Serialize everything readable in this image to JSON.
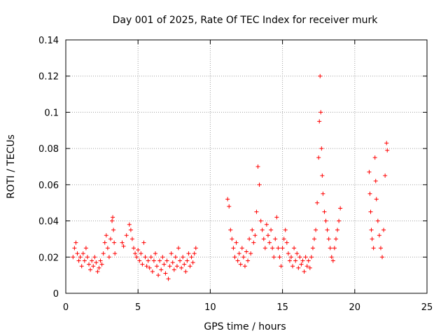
{
  "chart_data": {
    "type": "scatter",
    "title": "Day 001 of 2025, Rate Of TEC Index for receiver murk",
    "xlabel": "GPS time / hours",
    "ylabel": "ROTI / TECUs",
    "xlim": [
      0,
      25
    ],
    "ylim": [
      0,
      0.14
    ],
    "x_ticks": [
      "0",
      "5",
      "10",
      "15",
      "20",
      "25"
    ],
    "y_ticks": [
      "0",
      "0.02",
      "0.04",
      "0.06",
      "0.08",
      "0.1",
      "0.12",
      "0.14"
    ],
    "x_tick_values": [
      0,
      5,
      10,
      15,
      20,
      25
    ],
    "y_tick_values": [
      0,
      0.02,
      0.04,
      0.06,
      0.08,
      0.1,
      0.12,
      0.14
    ],
    "grid": true,
    "marker": "+",
    "marker_color": "#ff0000",
    "series": [
      {
        "points": [
          [
            0.5,
            0.02
          ],
          [
            0.6,
            0.025
          ],
          [
            0.7,
            0.028
          ],
          [
            0.8,
            0.022
          ],
          [
            0.9,
            0.018
          ],
          [
            1.0,
            0.02
          ],
          [
            1.1,
            0.015
          ],
          [
            1.2,
            0.022
          ],
          [
            1.3,
            0.018
          ],
          [
            1.4,
            0.025
          ],
          [
            1.5,
            0.02
          ],
          [
            1.6,
            0.016
          ],
          [
            1.7,
            0.013
          ],
          [
            1.8,
            0.018
          ],
          [
            1.9,
            0.015
          ],
          [
            2.0,
            0.02
          ],
          [
            2.1,
            0.017
          ],
          [
            2.2,
            0.012
          ],
          [
            2.3,
            0.014
          ],
          [
            2.4,
            0.018
          ],
          [
            2.5,
            0.016
          ],
          [
            2.6,
            0.022
          ],
          [
            2.7,
            0.028
          ],
          [
            2.8,
            0.032
          ],
          [
            2.9,
            0.025
          ],
          [
            3.0,
            0.02
          ],
          [
            3.1,
            0.03
          ],
          [
            3.2,
            0.04
          ],
          [
            3.25,
            0.042
          ],
          [
            3.3,
            0.035
          ],
          [
            3.35,
            0.028
          ],
          [
            3.4,
            0.022
          ],
          [
            3.9,
            0.028
          ],
          [
            4.0,
            0.026
          ],
          [
            4.2,
            0.032
          ],
          [
            4.4,
            0.038
          ],
          [
            4.5,
            0.035
          ],
          [
            4.6,
            0.03
          ],
          [
            4.7,
            0.025
          ],
          [
            4.8,
            0.022
          ],
          [
            4.9,
            0.02
          ],
          [
            5.0,
            0.024
          ],
          [
            5.1,
            0.018
          ],
          [
            5.2,
            0.022
          ],
          [
            5.3,
            0.016
          ],
          [
            5.4,
            0.028
          ],
          [
            5.5,
            0.02
          ],
          [
            5.6,
            0.015
          ],
          [
            5.7,
            0.018
          ],
          [
            5.8,
            0.014
          ],
          [
            5.9,
            0.02
          ],
          [
            6.0,
            0.012
          ],
          [
            6.1,
            0.018
          ],
          [
            6.2,
            0.022
          ],
          [
            6.3,
            0.015
          ],
          [
            6.4,
            0.01
          ],
          [
            6.5,
            0.018
          ],
          [
            6.6,
            0.013
          ],
          [
            6.7,
            0.02
          ],
          [
            6.8,
            0.016
          ],
          [
            6.9,
            0.011
          ],
          [
            7.0,
            0.018
          ],
          [
            7.1,
            0.008
          ],
          [
            7.2,
            0.015
          ],
          [
            7.3,
            0.022
          ],
          [
            7.4,
            0.017
          ],
          [
            7.5,
            0.013
          ],
          [
            7.6,
            0.02
          ],
          [
            7.7,
            0.015
          ],
          [
            7.8,
            0.025
          ],
          [
            7.9,
            0.018
          ],
          [
            8.0,
            0.014
          ],
          [
            8.1,
            0.02
          ],
          [
            8.2,
            0.016
          ],
          [
            8.3,
            0.012
          ],
          [
            8.4,
            0.018
          ],
          [
            8.5,
            0.022
          ],
          [
            8.6,
            0.015
          ],
          [
            8.7,
            0.02
          ],
          [
            8.8,
            0.017
          ],
          [
            8.9,
            0.022
          ],
          [
            9.0,
            0.025
          ],
          [
            11.2,
            0.052
          ],
          [
            11.3,
            0.048
          ],
          [
            11.4,
            0.035
          ],
          [
            11.5,
            0.03
          ],
          [
            11.6,
            0.025
          ],
          [
            11.7,
            0.02
          ],
          [
            11.8,
            0.028
          ],
          [
            11.9,
            0.018
          ],
          [
            12.0,
            0.022
          ],
          [
            12.1,
            0.016
          ],
          [
            12.2,
            0.025
          ],
          [
            12.3,
            0.02
          ],
          [
            12.4,
            0.015
          ],
          [
            12.5,
            0.023
          ],
          [
            12.6,
            0.018
          ],
          [
            12.7,
            0.03
          ],
          [
            12.8,
            0.022
          ],
          [
            12.9,
            0.035
          ],
          [
            13.0,
            0.028
          ],
          [
            13.1,
            0.032
          ],
          [
            13.2,
            0.045
          ],
          [
            13.3,
            0.07
          ],
          [
            13.4,
            0.06
          ],
          [
            13.5,
            0.04
          ],
          [
            13.6,
            0.035
          ],
          [
            13.7,
            0.03
          ],
          [
            13.8,
            0.025
          ],
          [
            13.9,
            0.038
          ],
          [
            14.0,
            0.032
          ],
          [
            14.1,
            0.028
          ],
          [
            14.2,
            0.035
          ],
          [
            14.3,
            0.025
          ],
          [
            14.4,
            0.02
          ],
          [
            14.5,
            0.03
          ],
          [
            14.6,
            0.042
          ],
          [
            14.7,
            0.025
          ],
          [
            14.8,
            0.02
          ],
          [
            14.9,
            0.015
          ],
          [
            15.0,
            0.025
          ],
          [
            15.1,
            0.03
          ],
          [
            15.2,
            0.035
          ],
          [
            15.3,
            0.028
          ],
          [
            15.4,
            0.022
          ],
          [
            15.5,
            0.018
          ],
          [
            15.6,
            0.02
          ],
          [
            15.7,
            0.015
          ],
          [
            15.8,
            0.025
          ],
          [
            15.9,
            0.018
          ],
          [
            16.0,
            0.022
          ],
          [
            16.1,
            0.014
          ],
          [
            16.2,
            0.02
          ],
          [
            16.3,
            0.016
          ],
          [
            16.4,
            0.018
          ],
          [
            16.5,
            0.012
          ],
          [
            16.6,
            0.02
          ],
          [
            16.7,
            0.015
          ],
          [
            16.8,
            0.018
          ],
          [
            16.9,
            0.014
          ],
          [
            17.0,
            0.02
          ],
          [
            17.1,
            0.025
          ],
          [
            17.2,
            0.03
          ],
          [
            17.3,
            0.035
          ],
          [
            17.4,
            0.05
          ],
          [
            17.5,
            0.075
          ],
          [
            17.55,
            0.095
          ],
          [
            17.6,
            0.12
          ],
          [
            17.65,
            0.1
          ],
          [
            17.7,
            0.08
          ],
          [
            17.75,
            0.065
          ],
          [
            17.8,
            0.055
          ],
          [
            17.9,
            0.045
          ],
          [
            18.0,
            0.04
          ],
          [
            18.1,
            0.035
          ],
          [
            18.2,
            0.03
          ],
          [
            18.3,
            0.025
          ],
          [
            18.4,
            0.02
          ],
          [
            18.5,
            0.018
          ],
          [
            18.6,
            0.025
          ],
          [
            18.7,
            0.03
          ],
          [
            18.8,
            0.035
          ],
          [
            18.9,
            0.04
          ],
          [
            19.0,
            0.047
          ],
          [
            21.0,
            0.067
          ],
          [
            21.05,
            0.055
          ],
          [
            21.1,
            0.045
          ],
          [
            21.15,
            0.035
          ],
          [
            21.2,
            0.03
          ],
          [
            21.3,
            0.025
          ],
          [
            21.4,
            0.075
          ],
          [
            21.45,
            0.062
          ],
          [
            21.5,
            0.052
          ],
          [
            21.6,
            0.04
          ],
          [
            21.7,
            0.032
          ],
          [
            21.8,
            0.025
          ],
          [
            21.9,
            0.02
          ],
          [
            22.0,
            0.035
          ],
          [
            22.1,
            0.065
          ],
          [
            22.2,
            0.083
          ],
          [
            22.25,
            0.079
          ]
        ]
      }
    ]
  }
}
